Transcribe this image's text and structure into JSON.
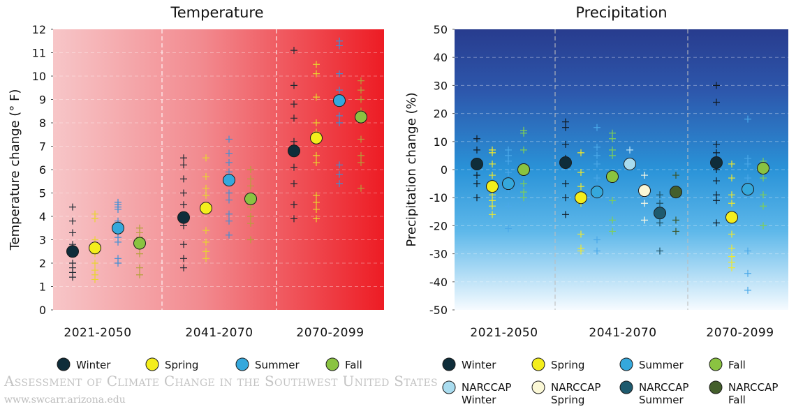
{
  "watermark": {
    "line1": "Assessment of Climate Change in the Southwest United States",
    "line2": "www.swcarr.arizona.edu"
  },
  "colors": {
    "winter": "#0f2d3a",
    "spring": "#f4ee1c",
    "summer": "#35a8dc",
    "fall": "#8ac341",
    "narccap_winter": "#a9dcef",
    "narccap_spring": "#fbf8d6",
    "narccap_summer": "#1e5a6e",
    "narccap_fall": "#445f2c"
  },
  "legend_left": [
    "Winter",
    "Spring",
    "Summer",
    "Fall"
  ],
  "legend_right": [
    [
      "Winter"
    ],
    [
      "Spring"
    ],
    [
      "Summer"
    ],
    [
      "Fall"
    ],
    [
      "NARCCAP",
      "Winter"
    ],
    [
      "NARCCAP",
      "Spring"
    ],
    [
      "NARCCAP",
      "Summer"
    ],
    [
      "NARCCAP",
      "Fall"
    ]
  ],
  "chart_data": [
    {
      "type": "scatter",
      "title": "Temperature",
      "ylabel": "Temperature change (°F)",
      "ylim": [
        0,
        12
      ],
      "yticks": [
        0,
        1,
        2,
        3,
        4,
        5,
        6,
        7,
        8,
        9,
        10,
        11,
        12
      ],
      "categories": [
        "2021-2050",
        "2041-2070",
        "2070-2099"
      ],
      "series": [
        {
          "name": "Winter",
          "means": [
            2.5,
            3.95,
            6.8
          ],
          "models": [
            [
              4.4,
              3.8,
              3.3,
              2.8,
              2.4,
              2.0,
              1.8,
              1.6,
              1.4
            ],
            [
              6.5,
              6.2,
              5.6,
              5.0,
              4.5,
              3.6,
              2.8,
              2.2,
              1.8
            ],
            [
              11.1,
              9.6,
              8.8,
              8.2,
              7.2,
              6.1,
              5.4,
              4.5,
              3.9
            ]
          ]
        },
        {
          "name": "Spring",
          "means": [
            2.65,
            4.35,
            7.35
          ],
          "models": [
            [
              4.1,
              3.9,
              3.0,
              2.4,
              2.0,
              1.7,
              1.5,
              1.3
            ],
            [
              6.5,
              5.7,
              5.2,
              4.9,
              3.4,
              2.9,
              2.5,
              2.2
            ],
            [
              10.5,
              10.1,
              9.1,
              8.0,
              7.6,
              6.6,
              6.3,
              4.9,
              4.6,
              4.3,
              3.9
            ]
          ]
        },
        {
          "name": "Summer",
          "means": [
            3.5,
            5.55,
            8.95
          ],
          "models": [
            [
              4.6,
              4.5,
              4.4,
              4.3,
              3.8,
              3.3,
              3.1,
              2.9,
              2.2,
              2.0
            ],
            [
              7.3,
              6.7,
              6.3,
              5.9,
              5.0,
              4.7,
              4.1,
              3.8,
              3.2
            ],
            [
              11.5,
              11.3,
              10.1,
              9.4,
              8.3,
              8.0,
              6.2,
              5.8,
              5.4
            ]
          ]
        },
        {
          "name": "Fall",
          "means": [
            2.85,
            4.75,
            8.25
          ],
          "models": [
            [
              3.5,
              3.3,
              3.1,
              2.7,
              2.4,
              1.8,
              1.5
            ],
            [
              6.0,
              5.6,
              5.3,
              4.4,
              4.0,
              3.7,
              3.0
            ],
            [
              9.8,
              9.4,
              9.0,
              8.5,
              7.3,
              6.6,
              6.3,
              5.2
            ]
          ]
        }
      ]
    },
    {
      "type": "scatter",
      "title": "Precipitation",
      "ylabel": "Precipitation change (%)",
      "ylim": [
        -50,
        50
      ],
      "yticks": [
        50,
        40,
        30,
        20,
        10,
        0,
        -10,
        -20,
        -30,
        -40,
        -50
      ],
      "categories": [
        "2021-2050",
        "2041-2070",
        "2070-2099"
      ],
      "series": [
        {
          "name": "Winter",
          "means": [
            2,
            2.5,
            2.5
          ],
          "models": [
            [
              11,
              7,
              2,
              -2,
              -5,
              -10
            ],
            [
              17,
              15,
              9,
              4,
              -5,
              -10,
              -16
            ],
            [
              30,
              24,
              9,
              6,
              0,
              -4,
              -9,
              -11,
              -19
            ]
          ]
        },
        {
          "name": "Spring",
          "means": [
            -6,
            -10,
            -17
          ],
          "models": [
            [
              7,
              6,
              2,
              -2,
              -9,
              -11,
              -13,
              -16
            ],
            [
              6,
              -1,
              -6,
              -9,
              -12,
              -23,
              -28,
              -29
            ],
            [
              2,
              -3,
              -9,
              -12,
              -23,
              -28,
              -31,
              -33,
              -35
            ]
          ]
        },
        {
          "name": "Summer",
          "means": [
            -5,
            -8,
            -7
          ],
          "models": [
            [
              7,
              5,
              3,
              -1,
              -7,
              -13,
              -21
            ],
            [
              15,
              8,
              5,
              2,
              -3,
              -25,
              -29
            ],
            [
              18,
              4,
              2,
              -3,
              -29,
              -37,
              -43
            ]
          ]
        },
        {
          "name": "Fall",
          "means": [
            0,
            -2.5,
            0.5
          ],
          "models": [
            [
              14,
              13,
              7,
              -5,
              -8,
              -10
            ],
            [
              13,
              11,
              7,
              5,
              -11,
              -18,
              -22
            ],
            [
              3,
              -3,
              -9,
              -13,
              -20
            ]
          ]
        },
        {
          "name": "NARCCAP Winter",
          "means": [
            null,
            2,
            null
          ],
          "models": [
            [],
            [
              7
            ],
            []
          ]
        },
        {
          "name": "NARCCAP Spring",
          "means": [
            null,
            -7.5,
            null
          ],
          "models": [
            [],
            [
              -2,
              -12,
              -18
            ],
            []
          ]
        },
        {
          "name": "NARCCAP Summer",
          "means": [
            null,
            -15.5,
            null
          ],
          "models": [
            [],
            [
              -9,
              -12,
              -19,
              -29
            ],
            []
          ]
        },
        {
          "name": "NARCCAP Fall",
          "means": [
            null,
            -8,
            null
          ],
          "models": [
            [],
            [
              -2,
              -18,
              -22
            ],
            []
          ]
        }
      ]
    }
  ]
}
